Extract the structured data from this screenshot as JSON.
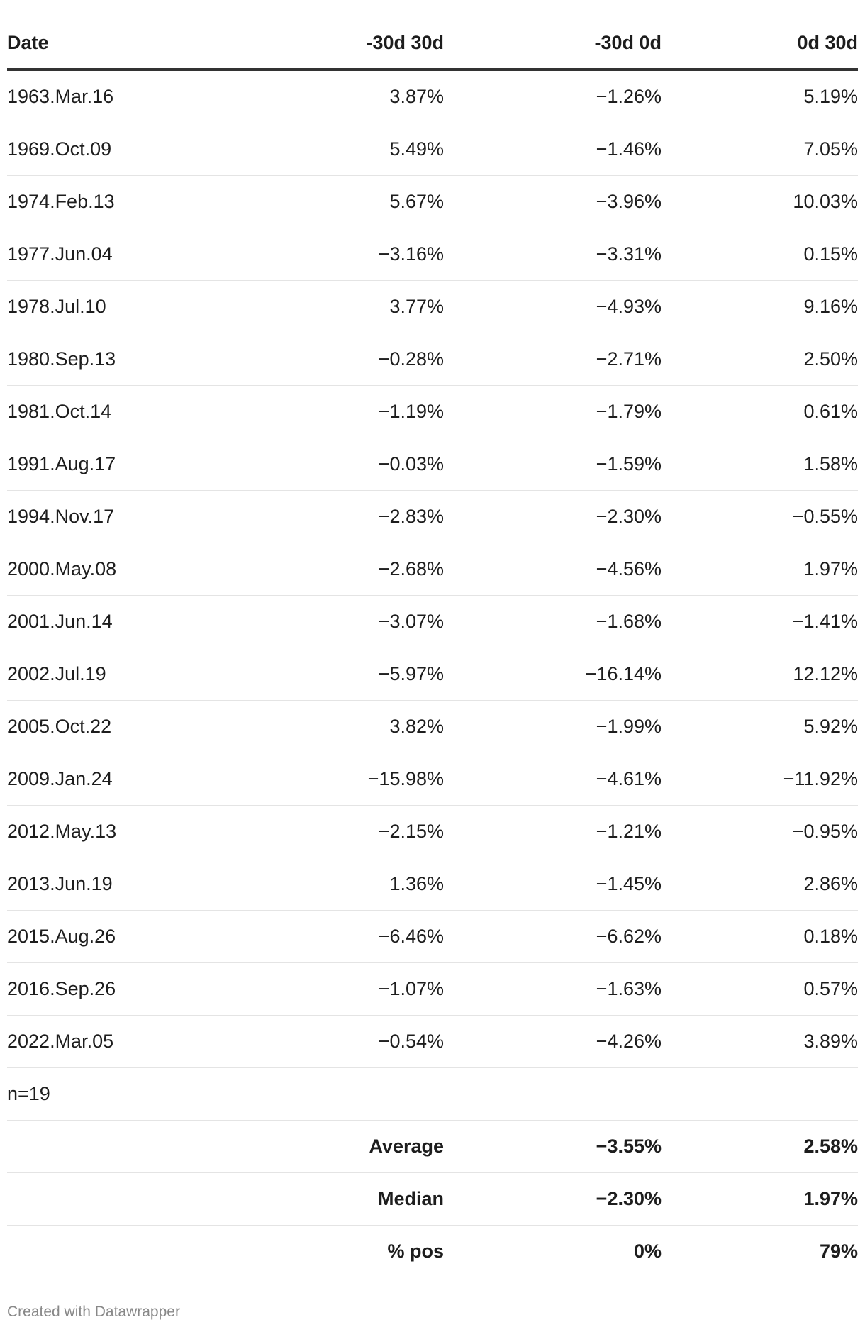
{
  "chart_data": {
    "type": "table",
    "columns": [
      "Date",
      "-30d 30d",
      "-30d 0d",
      "0d 30d"
    ],
    "rows": [
      [
        "1963.Mar.16",
        "3.87%",
        "−1.26%",
        "5.19%"
      ],
      [
        "1969.Oct.09",
        "5.49%",
        "−1.46%",
        "7.05%"
      ],
      [
        "1974.Feb.13",
        "5.67%",
        "−3.96%",
        "10.03%"
      ],
      [
        "1977.Jun.04",
        "−3.16%",
        "−3.31%",
        "0.15%"
      ],
      [
        "1978.Jul.10",
        "3.77%",
        "−4.93%",
        "9.16%"
      ],
      [
        "1980.Sep.13",
        "−0.28%",
        "−2.71%",
        "2.50%"
      ],
      [
        "1981.Oct.14",
        "−1.19%",
        "−1.79%",
        "0.61%"
      ],
      [
        "1991.Aug.17",
        "−0.03%",
        "−1.59%",
        "1.58%"
      ],
      [
        "1994.Nov.17",
        "−2.83%",
        "−2.30%",
        "−0.55%"
      ],
      [
        "2000.May.08",
        "−2.68%",
        "−4.56%",
        "1.97%"
      ],
      [
        "2001.Jun.14",
        "−3.07%",
        "−1.68%",
        "−1.41%"
      ],
      [
        "2002.Jul.19",
        "−5.97%",
        "−16.14%",
        "12.12%"
      ],
      [
        "2005.Oct.22",
        "3.82%",
        "−1.99%",
        "5.92%"
      ],
      [
        "2009.Jan.24",
        "−15.98%",
        "−4.61%",
        "−11.92%"
      ],
      [
        "2012.May.13",
        "−2.15%",
        "−1.21%",
        "−0.95%"
      ],
      [
        "2013.Jun.19",
        "1.36%",
        "−1.45%",
        "2.86%"
      ],
      [
        "2015.Aug.26",
        "−6.46%",
        "−6.62%",
        "0.18%"
      ],
      [
        "2016.Sep.26",
        "−1.07%",
        "−1.63%",
        "0.57%"
      ],
      [
        "2022.Mar.05",
        "−0.54%",
        "−4.26%",
        "3.89%"
      ]
    ],
    "count_label": "n=19",
    "summary_rows": [
      [
        "",
        "Average",
        "−3.55%",
        "2.58%"
      ],
      [
        "",
        "Median",
        "−2.30%",
        "1.97%"
      ],
      [
        "",
        "% pos",
        "0%",
        "79%"
      ]
    ]
  },
  "footer": {
    "credit": "Created with Datawrapper"
  }
}
